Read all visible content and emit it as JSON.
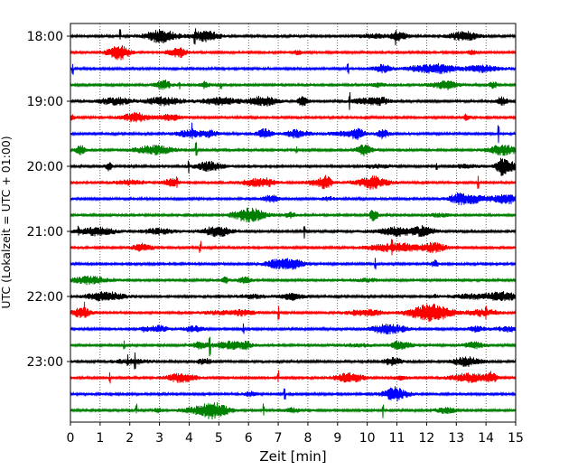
{
  "chart_data": {
    "type": "line",
    "title": "",
    "xlabel": "Zeit  [min]",
    "ylabel": "UTC (Lokalzeit = UTC + 01:00)",
    "xlim": [
      0,
      15
    ],
    "x_ticks": [
      "0",
      "1",
      "2",
      "3",
      "4",
      "5",
      "6",
      "7",
      "8",
      "9",
      "10",
      "11",
      "12",
      "13",
      "14",
      "15"
    ],
    "y_tick_labels": [
      "18:00",
      "19:00",
      "20:00",
      "21:00",
      "22:00",
      "23:00"
    ],
    "grid": {
      "x": "dotted",
      "y": "off"
    },
    "line_colors": [
      "#000000",
      "#ff0000",
      "#0000ff",
      "#008000"
    ],
    "traces": [
      {
        "time": "18:00",
        "color": "#000000"
      },
      {
        "time": "18:15",
        "color": "#ff0000"
      },
      {
        "time": "18:30",
        "color": "#0000ff"
      },
      {
        "time": "18:45",
        "color": "#008000"
      },
      {
        "time": "19:00",
        "color": "#000000"
      },
      {
        "time": "19:15",
        "color": "#ff0000"
      },
      {
        "time": "19:30",
        "color": "#0000ff"
      },
      {
        "time": "19:45",
        "color": "#008000"
      },
      {
        "time": "20:00",
        "color": "#000000"
      },
      {
        "time": "20:15",
        "color": "#ff0000"
      },
      {
        "time": "20:30",
        "color": "#0000ff"
      },
      {
        "time": "20:45",
        "color": "#008000"
      },
      {
        "time": "21:00",
        "color": "#000000"
      },
      {
        "time": "21:15",
        "color": "#ff0000"
      },
      {
        "time": "21:30",
        "color": "#0000ff"
      },
      {
        "time": "21:45",
        "color": "#008000"
      },
      {
        "time": "22:00",
        "color": "#000000"
      },
      {
        "time": "22:15",
        "color": "#ff0000"
      },
      {
        "time": "22:30",
        "color": "#0000ff"
      },
      {
        "time": "22:45",
        "color": "#008000"
      },
      {
        "time": "23:00",
        "color": "#000000"
      },
      {
        "time": "23:15",
        "color": "#ff0000"
      },
      {
        "time": "23:30",
        "color": "#0000ff"
      },
      {
        "time": "23:45",
        "color": "#008000"
      }
    ]
  }
}
